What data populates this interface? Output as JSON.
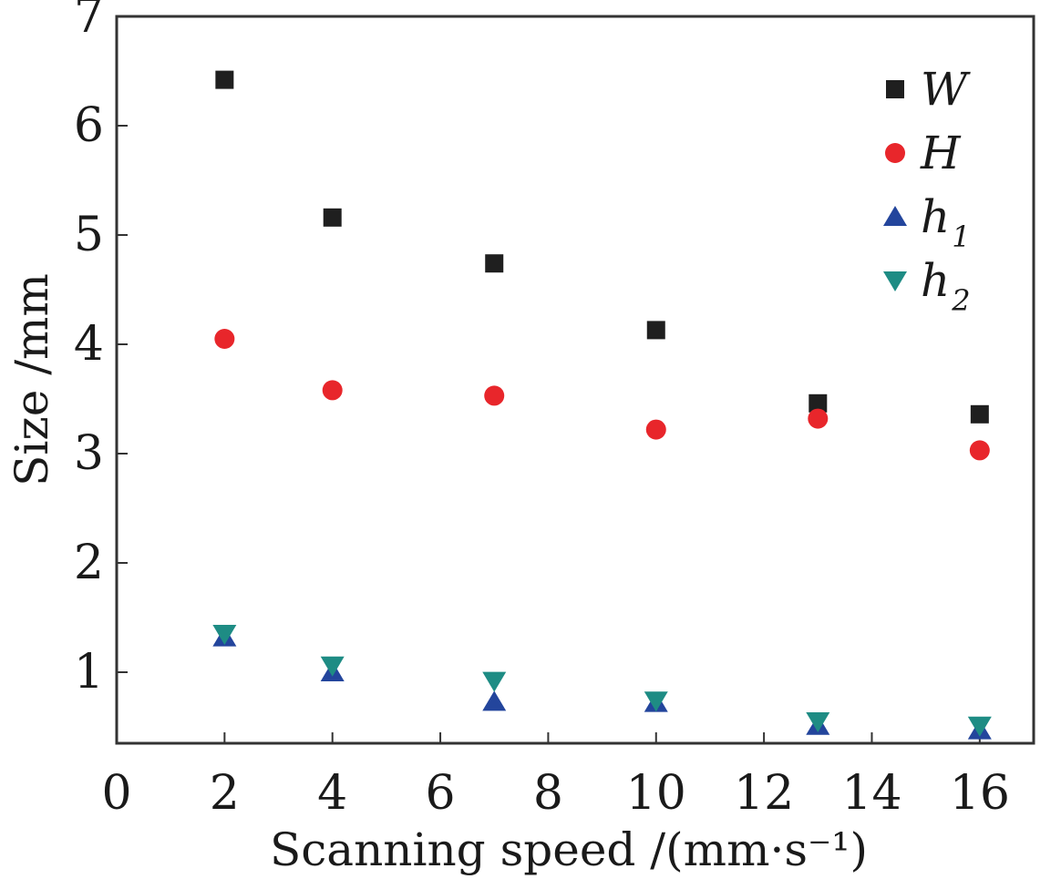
{
  "chart_data": {
    "type": "scatter",
    "xlabel": "Scanning speed /(mm·s⁻¹)",
    "ylabel": "Size /mm",
    "xlim": [
      0,
      17
    ],
    "ylim": [
      0.35,
      7
    ],
    "x_ticks": [
      "0",
      "2",
      "4",
      "6",
      "8",
      "10",
      "12",
      "14",
      "16"
    ],
    "y_ticks": [
      "1",
      "2",
      "3",
      "4",
      "5",
      "6",
      "7"
    ],
    "x": [
      2,
      4,
      7,
      10,
      13,
      16
    ],
    "legend_position": "top-right",
    "series": [
      {
        "name": "W",
        "name_sub": "",
        "marker": "square",
        "color": "#1f1f1f",
        "values": [
          6.42,
          5.16,
          4.74,
          4.13,
          3.46,
          3.36
        ]
      },
      {
        "name": "H",
        "name_sub": "",
        "marker": "circle",
        "color": "#e8262b",
        "values": [
          4.05,
          3.58,
          3.53,
          3.22,
          3.32,
          3.03
        ]
      },
      {
        "name": "h",
        "name_sub": "1",
        "marker": "triangle-up",
        "color": "#23459c",
        "values": [
          1.32,
          1.0,
          0.73,
          0.72,
          0.51,
          0.47
        ]
      },
      {
        "name": "h",
        "name_sub": "2",
        "marker": "triangle-down",
        "color": "#1e8c84",
        "values": [
          1.35,
          1.06,
          0.92,
          0.74,
          0.55,
          0.51
        ]
      }
    ]
  }
}
